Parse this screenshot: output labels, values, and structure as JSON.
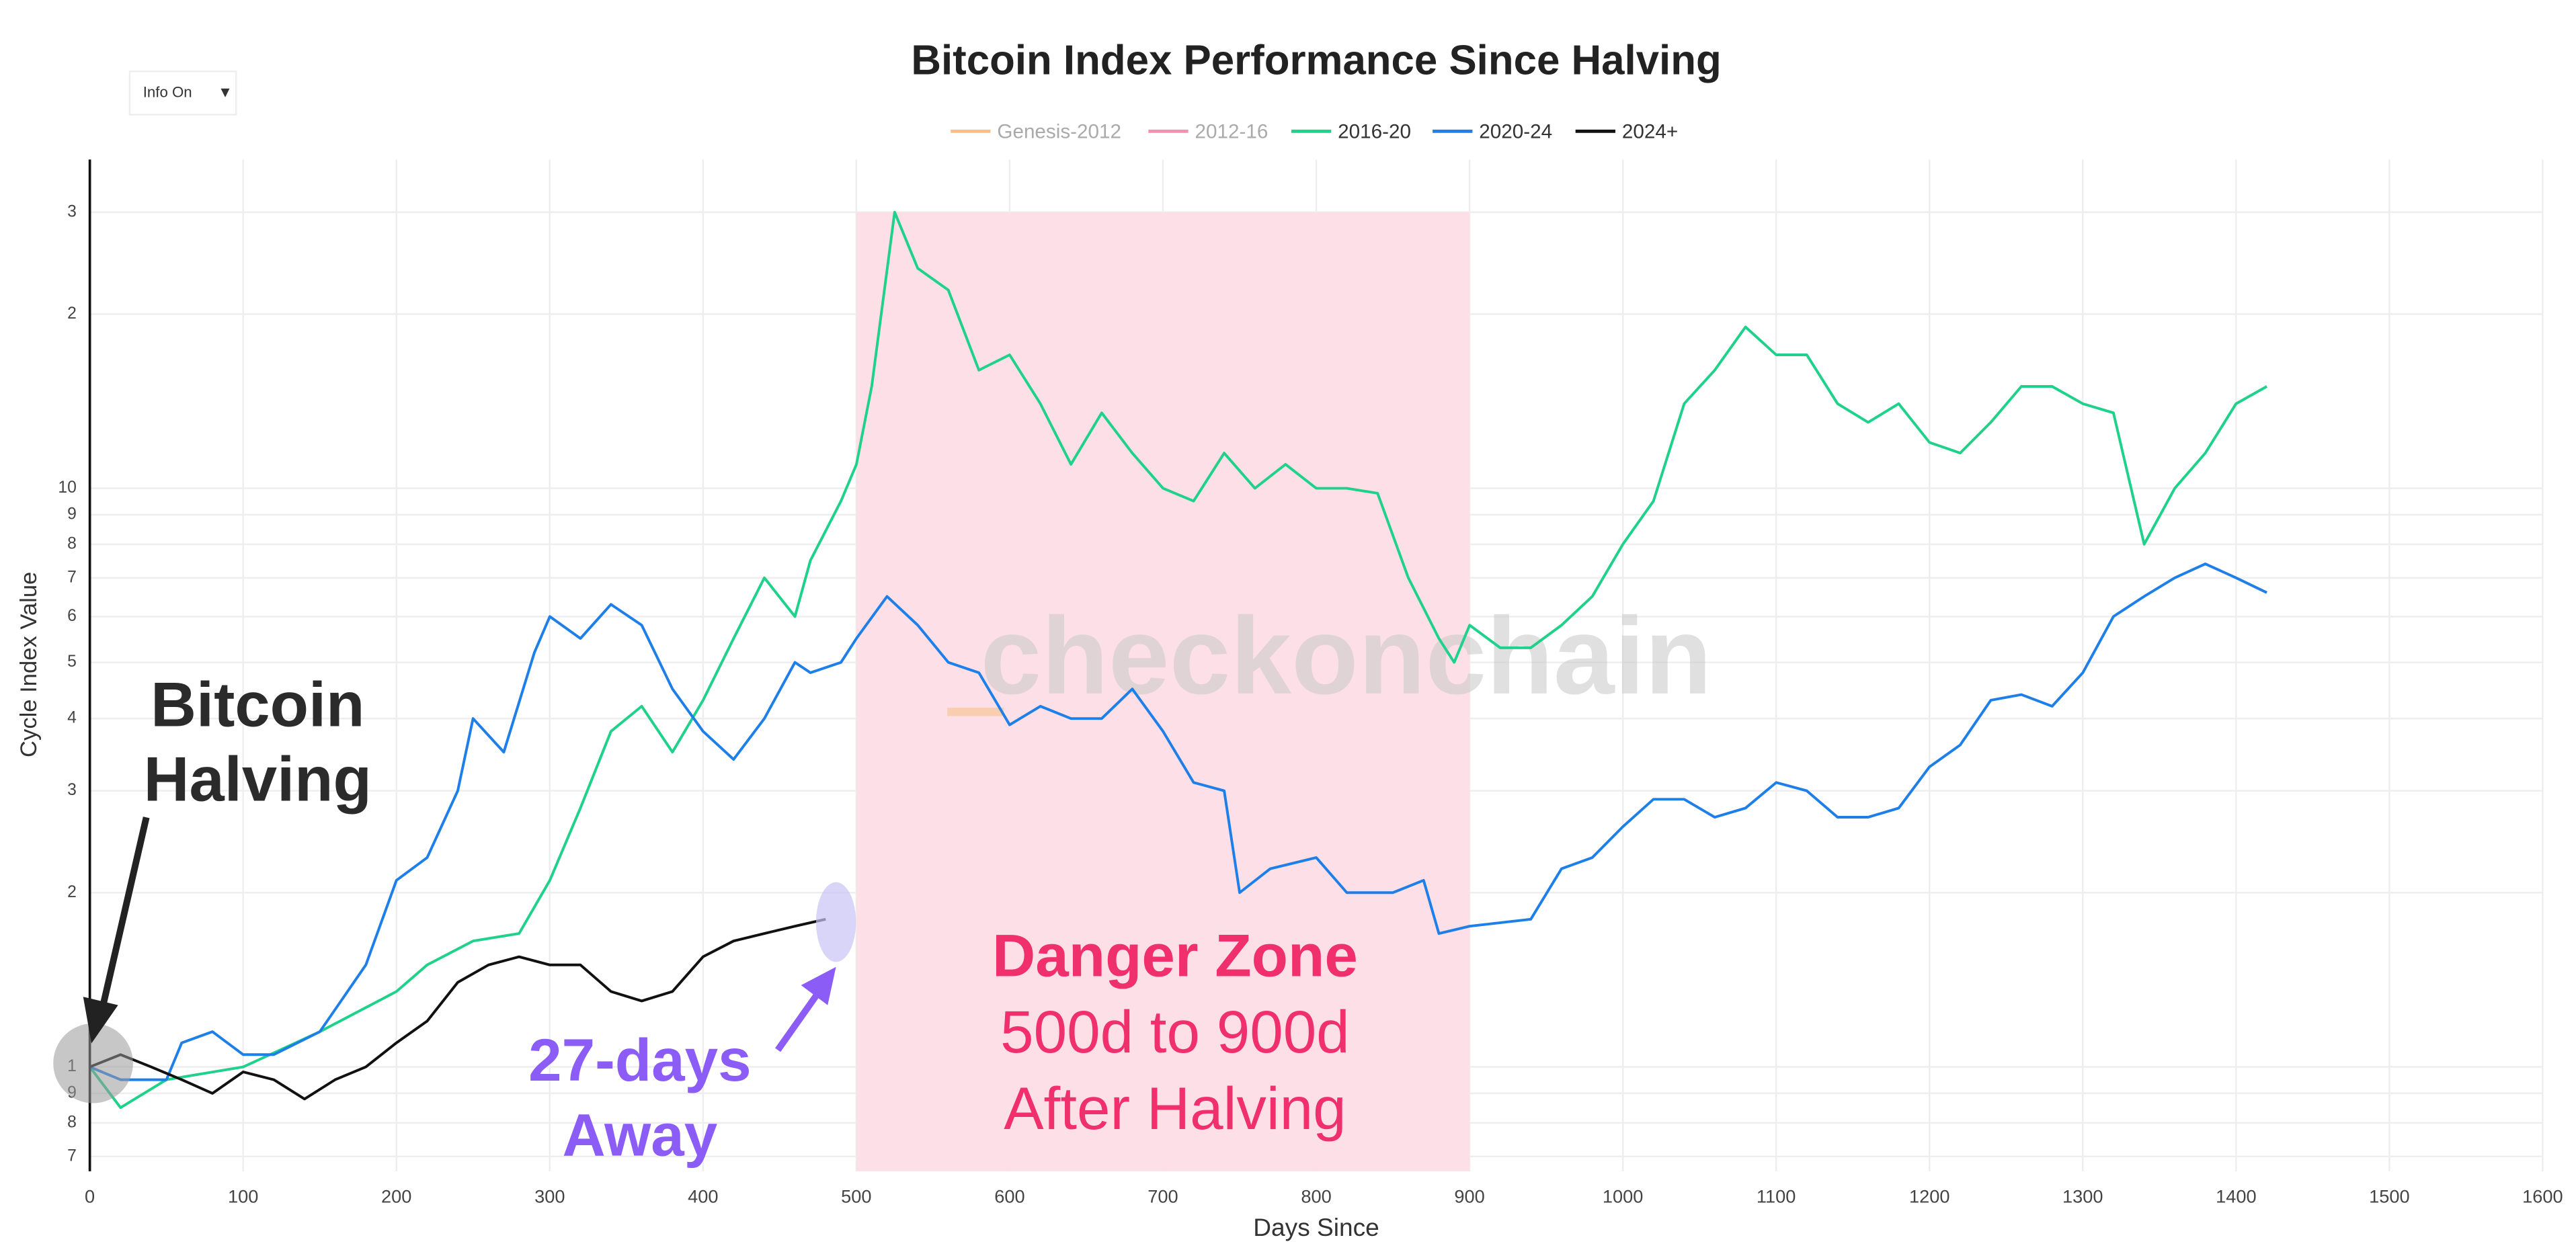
{
  "chart_data": {
    "type": "line",
    "title": "Bitcoin Index Performance Since Halving",
    "xlabel": "Days Since",
    "ylabel": "Cycle Index Value",
    "log_y": true,
    "grid": true,
    "xlim": [
      0,
      1600
    ],
    "xticks": [
      0,
      100,
      200,
      300,
      400,
      500,
      600,
      700,
      800,
      900,
      1000,
      1100,
      1200,
      1300,
      1400,
      1500,
      1600
    ],
    "ylim": [
      0.66,
      37
    ],
    "yticks": [
      {
        "value": 0.7,
        "label": "7"
      },
      {
        "value": 0.8,
        "label": "8"
      },
      {
        "value": 0.9,
        "label": "9"
      },
      1,
      2,
      3,
      4,
      5,
      6,
      7,
      8,
      9,
      10,
      {
        "value": 20,
        "label": "2"
      },
      {
        "value": 30,
        "label": "3"
      }
    ],
    "series": [
      {
        "name": "Genesis-2012",
        "color": "#f7c08a",
        "visible": false,
        "x": [],
        "values": []
      },
      {
        "name": "2012-16",
        "color": "#f48fb1",
        "visible": false,
        "x": [],
        "values": []
      },
      {
        "name": "2016-20",
        "color": "#1fd18a",
        "x": [
          0,
          20,
          50,
          100,
          150,
          200,
          220,
          250,
          280,
          300,
          320,
          340,
          360,
          380,
          400,
          420,
          440,
          460,
          470,
          490,
          500,
          510,
          525,
          540,
          560,
          580,
          600,
          620,
          640,
          660,
          680,
          700,
          720,
          740,
          760,
          780,
          800,
          820,
          840,
          860,
          880,
          890,
          900,
          920,
          940,
          960,
          980,
          1000,
          1020,
          1040,
          1060,
          1080,
          1100,
          1120,
          1140,
          1160,
          1180,
          1200,
          1220,
          1240,
          1260,
          1280,
          1300,
          1320,
          1340,
          1360,
          1380,
          1400,
          1420
        ],
        "values": [
          1,
          0.85,
          0.95,
          1,
          1.15,
          1.35,
          1.5,
          1.65,
          1.7,
          2.1,
          2.8,
          3.8,
          4.2,
          3.5,
          4.3,
          5.5,
          7,
          6,
          7.5,
          9.5,
          11,
          15,
          30,
          24,
          22,
          16,
          17,
          14,
          11,
          13.5,
          11.5,
          10,
          9.5,
          11.5,
          10,
          11,
          10,
          10,
          9.8,
          7,
          5.5,
          5,
          5.8,
          5.3,
          5.3,
          5.8,
          6.5,
          8,
          9.5,
          14,
          16,
          19,
          17,
          17,
          14,
          13,
          14,
          12,
          11.5,
          13,
          15,
          15,
          14,
          13.5,
          8,
          10,
          11.5,
          14,
          15
        ]
      },
      {
        "name": "2020-24",
        "color": "#1f7fe8",
        "x": [
          0,
          20,
          50,
          60,
          80,
          100,
          120,
          150,
          180,
          200,
          220,
          240,
          250,
          270,
          290,
          300,
          320,
          340,
          360,
          380,
          400,
          420,
          440,
          460,
          470,
          490,
          500,
          520,
          540,
          560,
          580,
          600,
          620,
          640,
          660,
          680,
          700,
          720,
          740,
          750,
          770,
          800,
          820,
          850,
          870,
          880,
          900,
          940,
          960,
          980,
          1000,
          1020,
          1040,
          1060,
          1080,
          1100,
          1120,
          1140,
          1160,
          1180,
          1200,
          1220,
          1240,
          1260,
          1280,
          1300,
          1320,
          1340,
          1360,
          1380,
          1400,
          1420
        ],
        "values": [
          1,
          0.95,
          0.95,
          1.1,
          1.15,
          1.05,
          1.05,
          1.15,
          1.5,
          2.1,
          2.3,
          3,
          4,
          3.5,
          5.2,
          6,
          5.5,
          6.3,
          5.8,
          4.5,
          3.8,
          3.4,
          4,
          5,
          4.8,
          5,
          5.5,
          6.5,
          5.8,
          5,
          4.8,
          3.9,
          4.2,
          4,
          4,
          4.5,
          3.8,
          3.1,
          3,
          2,
          2.2,
          2.3,
          2,
          2,
          2.1,
          1.7,
          1.75,
          1.8,
          2.2,
          2.3,
          2.6,
          2.9,
          2.9,
          2.7,
          2.8,
          3.1,
          3,
          2.7,
          2.7,
          2.8,
          3.3,
          3.6,
          4.3,
          4.4,
          4.2,
          4.8,
          6,
          6.5,
          7,
          7.4,
          7,
          6.6
        ]
      },
      {
        "name": "2024+",
        "color": "#111111",
        "x": [
          0,
          20,
          40,
          60,
          80,
          100,
          120,
          140,
          160,
          180,
          200,
          220,
          240,
          260,
          280,
          300,
          320,
          340,
          360,
          380,
          400,
          420,
          440,
          460,
          480
        ],
        "values": [
          1,
          1.05,
          1,
          0.95,
          0.9,
          0.98,
          0.95,
          0.88,
          0.95,
          1,
          1.1,
          1.2,
          1.4,
          1.5,
          1.55,
          1.5,
          1.5,
          1.35,
          1.3,
          1.35,
          1.55,
          1.65,
          1.7,
          1.75,
          1.8
        ]
      }
    ],
    "shaded_region": {
      "x": [
        500,
        900
      ],
      "ytop": 30
    },
    "annotations": {
      "halving": [
        "Bitcoin",
        "Halving"
      ],
      "countdown": [
        "27-days",
        "Away"
      ],
      "danger": [
        "Danger Zone",
        "500d to 900d",
        "After Halving"
      ],
      "watermark": "checkonchain"
    },
    "controls": {
      "dropdown": "Info On",
      "arrow": "▼"
    }
  }
}
